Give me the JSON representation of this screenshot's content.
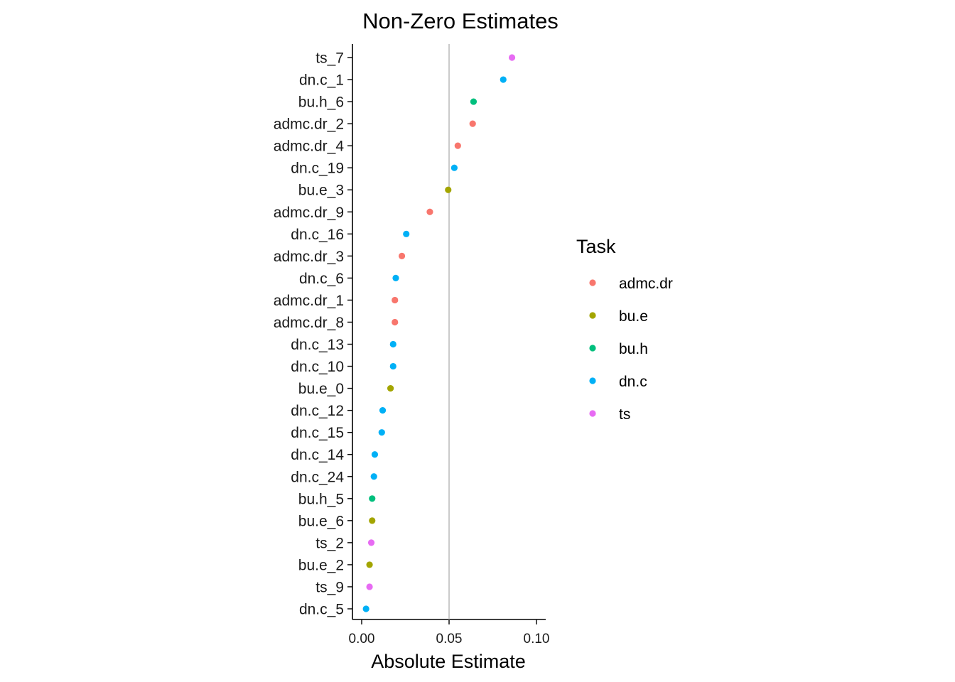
{
  "chart_data": {
    "type": "scatter",
    "title": "Non-Zero Estimates",
    "xlabel": "Absolute Estimate",
    "ylabel": "",
    "xlim": [
      -0.005,
      0.105
    ],
    "xticks": [
      0.0,
      0.05,
      0.1
    ],
    "xtick_labels": [
      "0.00",
      "0.05",
      "0.10"
    ],
    "reference_line_x": 0.05,
    "grid": false,
    "legend": {
      "title": "Task",
      "placement": "right",
      "entries": [
        {
          "label": "admc.dr",
          "color": "#F8766D"
        },
        {
          "label": "bu.e",
          "color": "#A3A500"
        },
        {
          "label": "bu.h",
          "color": "#00BF7D"
        },
        {
          "label": "dn.c",
          "color": "#00B0F6"
        },
        {
          "label": "ts",
          "color": "#E76BF3"
        }
      ]
    },
    "points": [
      {
        "label": "ts_7",
        "value": 0.086,
        "task": "ts"
      },
      {
        "label": "dn.c_1",
        "value": 0.081,
        "task": "dn.c"
      },
      {
        "label": "bu.h_6",
        "value": 0.064,
        "task": "bu.h"
      },
      {
        "label": "admc.dr_2",
        "value": 0.0635,
        "task": "admc.dr"
      },
      {
        "label": "admc.dr_4",
        "value": 0.055,
        "task": "admc.dr"
      },
      {
        "label": "dn.c_19",
        "value": 0.053,
        "task": "dn.c"
      },
      {
        "label": "bu.e_3",
        "value": 0.0495,
        "task": "bu.e"
      },
      {
        "label": "admc.dr_9",
        "value": 0.039,
        "task": "admc.dr"
      },
      {
        "label": "dn.c_16",
        "value": 0.0255,
        "task": "dn.c"
      },
      {
        "label": "admc.dr_3",
        "value": 0.023,
        "task": "admc.dr"
      },
      {
        "label": "dn.c_6",
        "value": 0.0195,
        "task": "dn.c"
      },
      {
        "label": "admc.dr_1",
        "value": 0.019,
        "task": "admc.dr"
      },
      {
        "label": "admc.dr_8",
        "value": 0.019,
        "task": "admc.dr"
      },
      {
        "label": "dn.c_13",
        "value": 0.018,
        "task": "dn.c"
      },
      {
        "label": "dn.c_10",
        "value": 0.018,
        "task": "dn.c"
      },
      {
        "label": "bu.e_0",
        "value": 0.0165,
        "task": "bu.e"
      },
      {
        "label": "dn.c_12",
        "value": 0.012,
        "task": "dn.c"
      },
      {
        "label": "dn.c_15",
        "value": 0.0115,
        "task": "dn.c"
      },
      {
        "label": "dn.c_14",
        "value": 0.0075,
        "task": "dn.c"
      },
      {
        "label": "dn.c_24",
        "value": 0.007,
        "task": "dn.c"
      },
      {
        "label": "bu.h_5",
        "value": 0.006,
        "task": "bu.h"
      },
      {
        "label": "bu.e_6",
        "value": 0.006,
        "task": "bu.e"
      },
      {
        "label": "ts_2",
        "value": 0.0055,
        "task": "ts"
      },
      {
        "label": "bu.e_2",
        "value": 0.0045,
        "task": "bu.e"
      },
      {
        "label": "ts_9",
        "value": 0.0045,
        "task": "ts"
      },
      {
        "label": "dn.c_5",
        "value": 0.0025,
        "task": "dn.c"
      }
    ]
  }
}
